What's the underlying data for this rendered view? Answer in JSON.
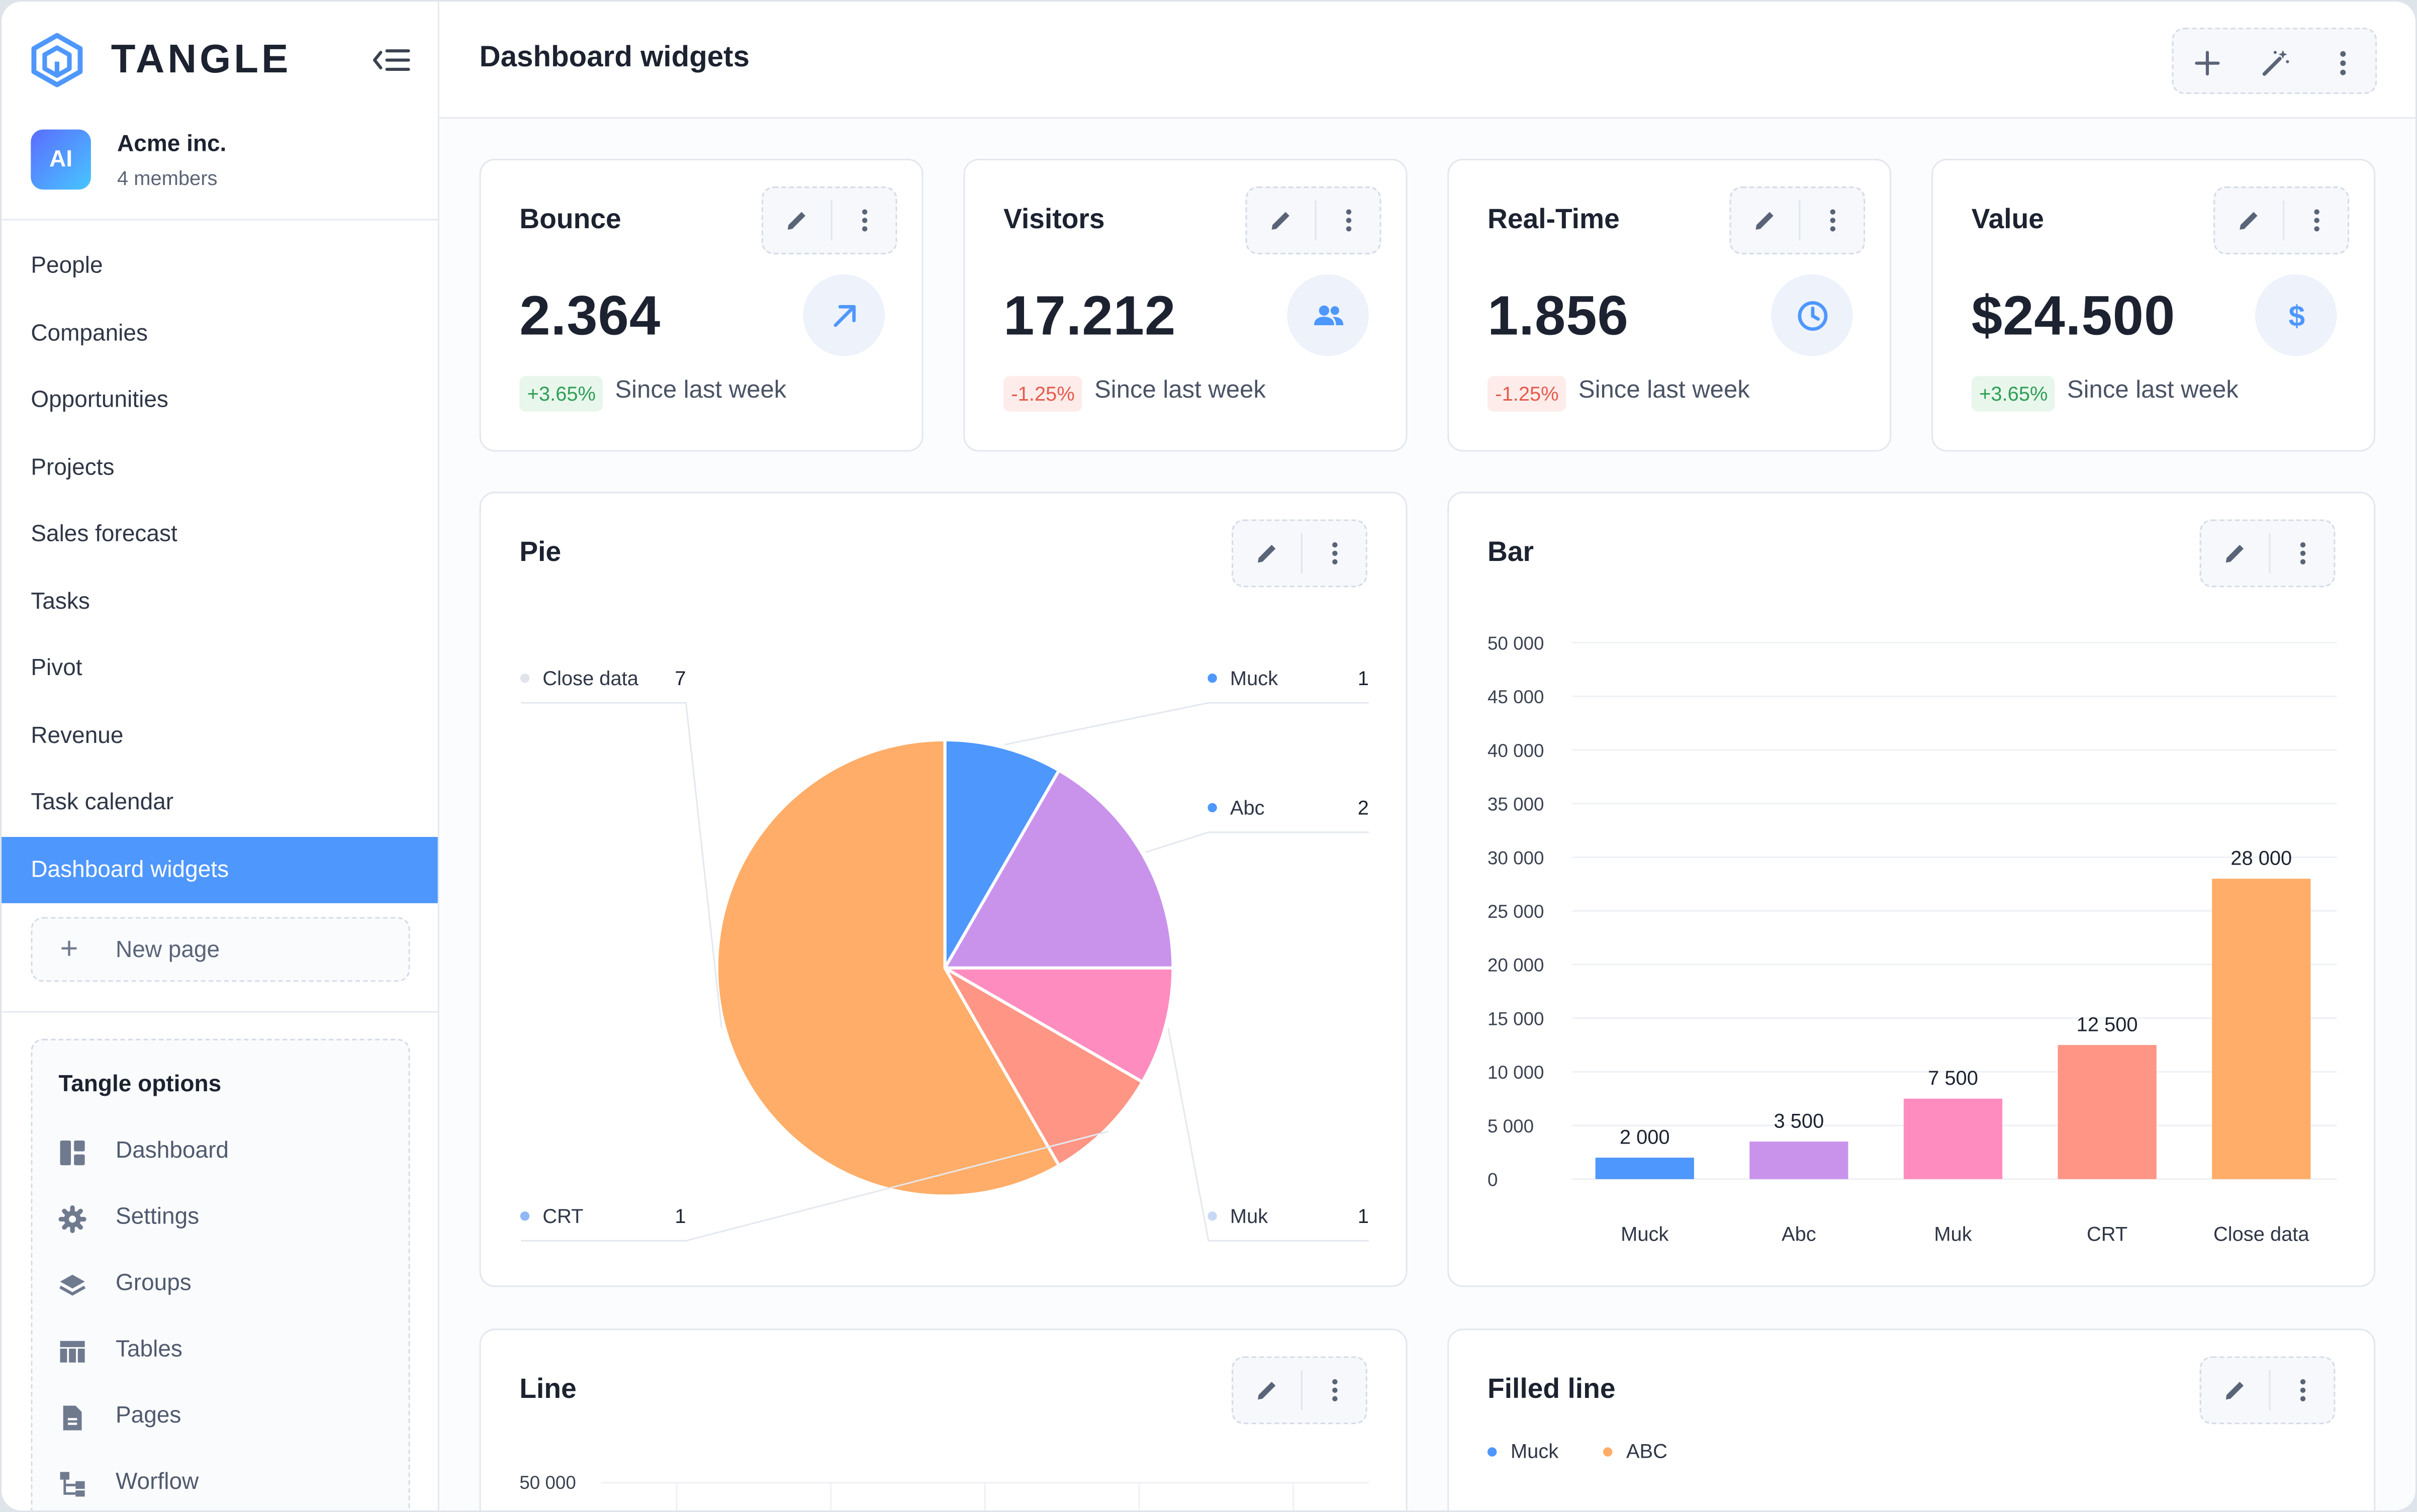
{
  "brand": {
    "name": "TANGLE"
  },
  "org": {
    "avatar": "AI",
    "name": "Acme inc.",
    "members": "4 members"
  },
  "nav": [
    {
      "label": "People"
    },
    {
      "label": "Companies"
    },
    {
      "label": "Opportunities"
    },
    {
      "label": "Projects"
    },
    {
      "label": "Sales forecast"
    },
    {
      "label": "Tasks"
    },
    {
      "label": "Pivot"
    },
    {
      "label": "Revenue"
    },
    {
      "label": "Task calendar"
    },
    {
      "label": "Dashboard widgets",
      "active": true
    }
  ],
  "new_page_label": "New page",
  "options": {
    "title": "Tangle options",
    "items": [
      {
        "label": "Dashboard",
        "icon": "dashboard-icon"
      },
      {
        "label": "Settings",
        "icon": "gear-icon"
      },
      {
        "label": "Groups",
        "icon": "layers-icon"
      },
      {
        "label": "Tables",
        "icon": "table-icon"
      },
      {
        "label": "Pages",
        "icon": "document-icon"
      },
      {
        "label": "Worflow",
        "icon": "workflow-icon"
      }
    ]
  },
  "header": {
    "title": "Dashboard widgets"
  },
  "stats": [
    {
      "title": "Bounce",
      "value": "2.364",
      "change": "+3.65%",
      "trend": "positive",
      "since": "Since last week",
      "icon": "arrow-up-right-icon"
    },
    {
      "title": "Visitors",
      "value": "17.212",
      "change": "-1.25%",
      "trend": "negative",
      "since": "Since last week",
      "icon": "users-icon"
    },
    {
      "title": "Real-Time",
      "value": "1.856",
      "change": "-1.25%",
      "trend": "negative",
      "since": "Since last week",
      "icon": "clock-icon"
    },
    {
      "title": "Value",
      "value": "$24.500",
      "change": "+3.65%",
      "trend": "positive",
      "since": "Since last week",
      "icon": "dollar-icon"
    }
  ],
  "widgets": {
    "pie_title": "Pie",
    "bar_title": "Bar",
    "line_title": "Line",
    "filled_title": "Filled line"
  },
  "colors": {
    "accent": "#4e97fd",
    "positive": "#2f9e55",
    "negative": "#e45b4b"
  },
  "chart_data": [
    {
      "type": "pie",
      "title": "Pie",
      "slices": [
        {
          "label": "Muck",
          "value": 1,
          "color": "#4e97fd"
        },
        {
          "label": "Abc",
          "value": 2,
          "color": "#c993ec"
        },
        {
          "label": "Muk",
          "value": 1,
          "color": "#ff8cbf"
        },
        {
          "label": "CRT",
          "value": 1,
          "color": "#ff9585"
        },
        {
          "label": "Close data",
          "value": 7,
          "color": "#ffad68"
        }
      ]
    },
    {
      "type": "bar",
      "title": "Bar",
      "categories": [
        "Muck",
        "Abc",
        "Muk",
        "CRT",
        "Close data"
      ],
      "values": [
        2000,
        3500,
        7500,
        12500,
        28000
      ],
      "data_labels": [
        "2 000",
        "3 500",
        "7 500",
        "12 500",
        "28 000"
      ],
      "colors": [
        "#4e97fd",
        "#c993ec",
        "#ff8cbf",
        "#ff9585",
        "#ffad68"
      ],
      "yticks": [
        "0",
        "5 000",
        "10 000",
        "15 000",
        "20 000",
        "25 000",
        "30 000",
        "35 000",
        "40 000",
        "45 000",
        "50 000"
      ],
      "ylim": [
        0,
        50000
      ],
      "grid": true
    },
    {
      "type": "line",
      "title": "Line",
      "yticks_visible": [
        "50 000"
      ],
      "grid": true
    },
    {
      "type": "area",
      "title": "Filled line",
      "series": [
        {
          "name": "Muck",
          "color": "#4e97fd"
        },
        {
          "name": "ABC",
          "color": "#ffad68"
        }
      ],
      "legend": "top-left"
    }
  ]
}
